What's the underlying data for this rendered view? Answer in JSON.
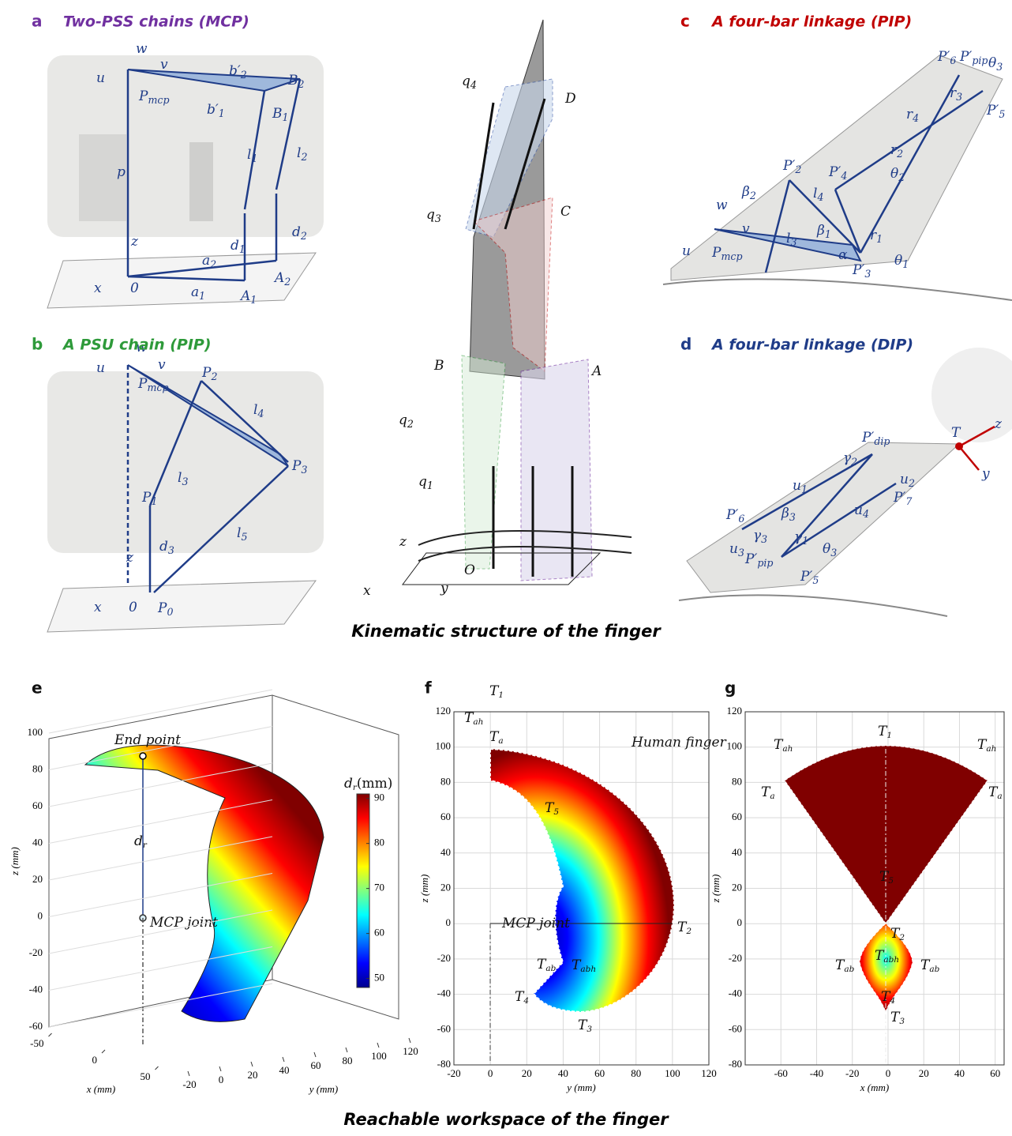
{
  "panels": {
    "a": {
      "letter": "a",
      "title": "Two-PSS chains (MCP)",
      "labels": [
        {
          "text": "w"
        },
        {
          "text": "v"
        },
        {
          "text": "u"
        },
        {
          "text": "P",
          "sub": "mcp"
        },
        {
          "text": "b′",
          "sub": "2"
        },
        {
          "text": "b′",
          "sub": "1"
        },
        {
          "text": "B",
          "sub": "2"
        },
        {
          "text": "B",
          "sub": "1"
        },
        {
          "text": "l",
          "sub": "1"
        },
        {
          "text": "l",
          "sub": "2"
        },
        {
          "text": "p"
        },
        {
          "text": "z"
        },
        {
          "text": "d",
          "sub": "1"
        },
        {
          "text": "d",
          "sub": "2"
        },
        {
          "text": "a",
          "sub": "2"
        },
        {
          "text": "a",
          "sub": "1"
        },
        {
          "text": "A",
          "sub": "1"
        },
        {
          "text": "A",
          "sub": "2"
        },
        {
          "text": "x"
        },
        {
          "text": "0"
        }
      ]
    },
    "b": {
      "letter": "b",
      "title": "A PSU chain (PIP)",
      "labels": [
        {
          "text": "w"
        },
        {
          "text": "v"
        },
        {
          "text": "u"
        },
        {
          "text": "P",
          "sub": "mcp"
        },
        {
          "text": "P",
          "sub": "2"
        },
        {
          "text": "l",
          "sub": "4"
        },
        {
          "text": "P",
          "sub": "3"
        },
        {
          "text": "P",
          "sub": "1"
        },
        {
          "text": "l",
          "sub": "3"
        },
        {
          "text": "l",
          "sub": "5"
        },
        {
          "text": "d",
          "sub": "3"
        },
        {
          "text": "z"
        },
        {
          "text": "x"
        },
        {
          "text": "0"
        },
        {
          "text": "P",
          "sub": "0"
        }
      ]
    },
    "center": {
      "labels": [
        {
          "text": "q",
          "sub": "4"
        },
        {
          "text": "D"
        },
        {
          "text": "q",
          "sub": "3"
        },
        {
          "text": "C"
        },
        {
          "text": "B"
        },
        {
          "text": "A"
        },
        {
          "text": "q",
          "sub": "2"
        },
        {
          "text": "q",
          "sub": "1"
        },
        {
          "text": "z"
        },
        {
          "text": "O"
        },
        {
          "text": "x"
        },
        {
          "text": "y"
        }
      ]
    },
    "c": {
      "letter": "c",
      "title": "A four-bar linkage (PIP)",
      "labels": [
        {
          "text": "P′",
          "sub": "6"
        },
        {
          "text": "P′",
          "sub": "pip"
        },
        {
          "text": "θ",
          "sub": "3"
        },
        {
          "text": "r",
          "sub": "3"
        },
        {
          "text": "P′",
          "sub": "5"
        },
        {
          "text": "r",
          "sub": "4"
        },
        {
          "text": "r",
          "sub": "2"
        },
        {
          "text": "P′",
          "sub": "2"
        },
        {
          "text": "P′",
          "sub": "4"
        },
        {
          "text": "θ",
          "sub": "2"
        },
        {
          "text": "β",
          "sub": "2"
        },
        {
          "text": "l",
          "sub": "4"
        },
        {
          "text": "β",
          "sub": "1"
        },
        {
          "text": "r",
          "sub": "1"
        },
        {
          "text": "w"
        },
        {
          "text": "v"
        },
        {
          "text": "l",
          "sub": "3"
        },
        {
          "text": "α"
        },
        {
          "text": "θ",
          "sub": "1"
        },
        {
          "text": "u"
        },
        {
          "text": "P",
          "sub": "mcp"
        },
        {
          "text": "P′",
          "sub": "3"
        }
      ]
    },
    "d": {
      "letter": "d",
      "title": "A four-bar linkage (DIP)",
      "labels": [
        {
          "text": "P′",
          "sub": "dip"
        },
        {
          "text": "T"
        },
        {
          "text": "z"
        },
        {
          "text": "y"
        },
        {
          "text": "γ",
          "sub": "2"
        },
        {
          "text": "u",
          "sub": "2"
        },
        {
          "text": "u",
          "sub": "1"
        },
        {
          "text": "P′",
          "sub": "7"
        },
        {
          "text": "β",
          "sub": "3"
        },
        {
          "text": "u",
          "sub": "4"
        },
        {
          "text": "P′",
          "sub": "6"
        },
        {
          "text": "γ",
          "sub": "3"
        },
        {
          "text": "γ",
          "sub": "1"
        },
        {
          "text": "u",
          "sub": "3"
        },
        {
          "text": "P′",
          "sub": "pip"
        },
        {
          "text": "θ",
          "sub": "3"
        },
        {
          "text": "P′",
          "sub": "5"
        }
      ]
    },
    "e": {
      "letter": "e",
      "labels": [
        {
          "text": "End point"
        },
        {
          "text": "d",
          "sub": "r"
        },
        {
          "text": "MCP joint"
        },
        {
          "text": "d",
          "sub": "r",
          "after": "(mm)"
        }
      ],
      "zlabel": "z (mm)",
      "xlabel": "x (mm)",
      "ylabel": "y (mm)",
      "zlim": [
        -60,
        100
      ],
      "zticks": [
        -60,
        -40,
        -20,
        0,
        20,
        40,
        60,
        80,
        100
      ],
      "xticks": [
        -50,
        0,
        50
      ],
      "yticks": [
        -20,
        0,
        20,
        40,
        60,
        80,
        100,
        120
      ],
      "clim": [
        48,
        91
      ],
      "cticks": [
        50,
        60,
        70,
        80,
        90
      ]
    },
    "f": {
      "letter": "f",
      "labels": [
        {
          "text": "T",
          "sub": "1"
        },
        {
          "text": "T",
          "sub": "ah"
        },
        {
          "text": "T",
          "sub": "a"
        },
        {
          "text": "Human finger"
        },
        {
          "text": "T",
          "sub": "5"
        },
        {
          "text": "MCP joint"
        },
        {
          "text": "T",
          "sub": "2"
        },
        {
          "text": "T",
          "sub": "ab"
        },
        {
          "text": "T",
          "sub": "abh"
        },
        {
          "text": "T",
          "sub": "4"
        },
        {
          "text": "T",
          "sub": "3"
        }
      ],
      "xlabel": "y (mm)",
      "ylabel": "z (mm)",
      "xlim": [
        -20,
        120
      ],
      "xticks": [
        -20,
        0,
        20,
        40,
        60,
        80,
        100,
        120
      ],
      "ylim": [
        -80,
        120
      ],
      "yticks": [
        -80,
        -60,
        -40,
        -20,
        0,
        20,
        40,
        60,
        80,
        100,
        120
      ]
    },
    "g": {
      "letter": "g",
      "labels": [
        {
          "text": "T",
          "sub": "1"
        },
        {
          "text": "T",
          "sub": "ah"
        },
        {
          "text": "T",
          "sub": "ah"
        },
        {
          "text": "T",
          "sub": "a"
        },
        {
          "text": "T",
          "sub": "a"
        },
        {
          "text": "T",
          "sub": "5"
        },
        {
          "text": "T",
          "sub": "2"
        },
        {
          "text": "T",
          "sub": "ab"
        },
        {
          "text": "T",
          "sub": "ab"
        },
        {
          "text": "T",
          "sub": "abh"
        },
        {
          "text": "T",
          "sub": "4"
        },
        {
          "text": "T",
          "sub": "3"
        }
      ],
      "xlabel": "x (mm)",
      "ylabel": "z (mm)",
      "xlim": [
        -80,
        65
      ],
      "xticks": [
        -60,
        -40,
        -20,
        0,
        20,
        40,
        60
      ],
      "ylim": [
        -80,
        120
      ],
      "yticks": [
        -80,
        -60,
        -40,
        -20,
        0,
        20,
        40,
        60,
        80,
        100,
        120
      ]
    }
  },
  "captions": {
    "top": "Kinematic structure of the finger",
    "bottom": "Reachable workspace of the finger"
  }
}
